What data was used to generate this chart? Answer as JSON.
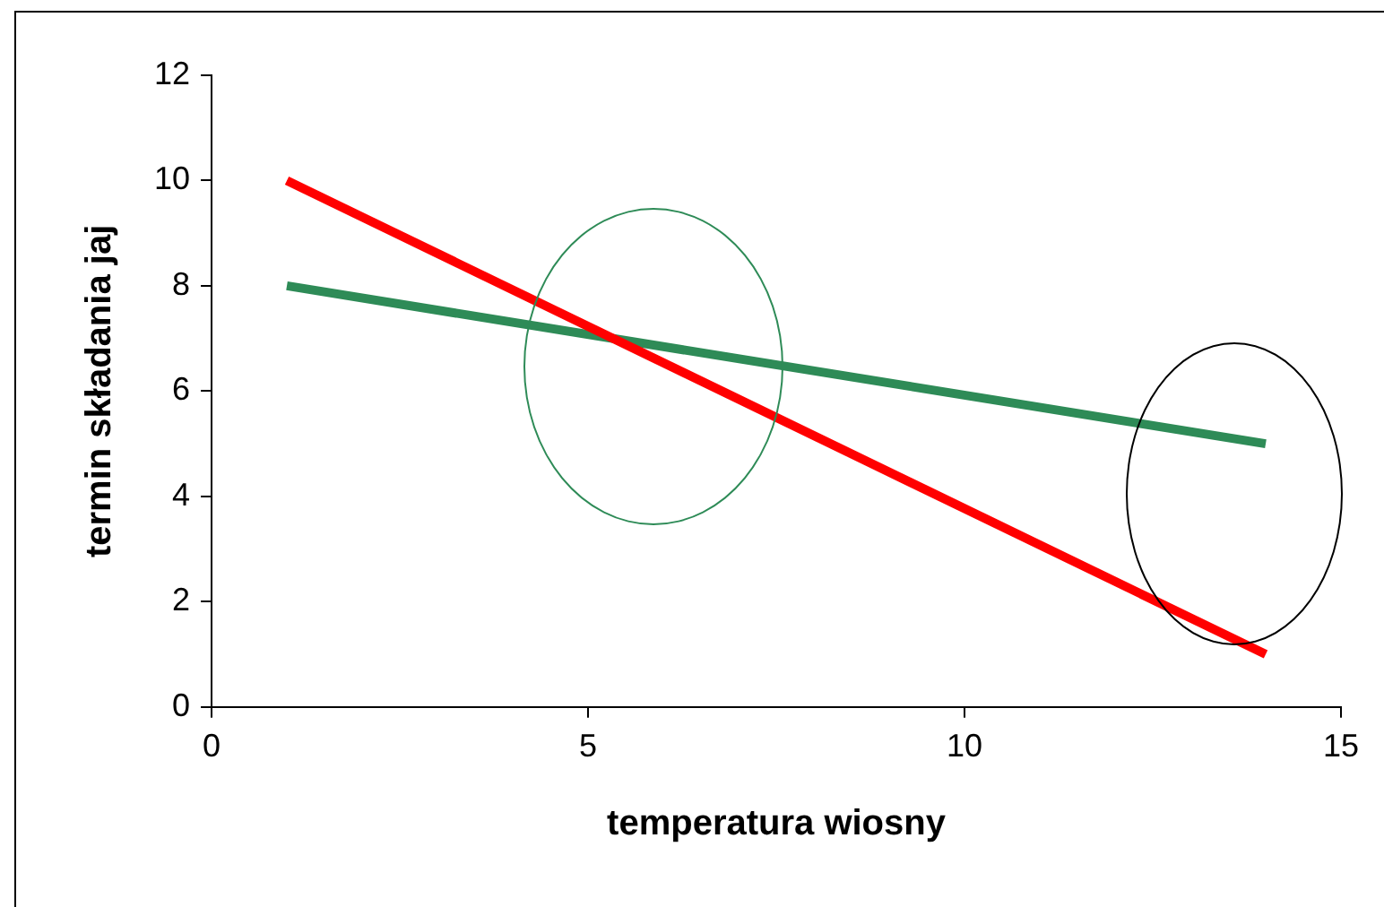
{
  "chart_data": {
    "type": "line",
    "xlabel": "temperatura wiosny",
    "ylabel": "termin składania jaj",
    "series": [
      {
        "color": "#ff0000",
        "values": [
          10,
          1
        ]
      },
      {
        "color": "#2e8b57",
        "values": [
          8,
          5
        ]
      }
    ],
    "x": [
      1,
      14
    ],
    "xlim": [
      0,
      15
    ],
    "xticks": [
      0,
      5,
      10,
      15
    ],
    "ylim": [
      0,
      12
    ],
    "yticks": [
      0,
      2,
      4,
      6,
      8,
      10,
      12
    ],
    "grid": false,
    "legend": false,
    "marker": "none",
    "line_style": "solid"
  }
}
